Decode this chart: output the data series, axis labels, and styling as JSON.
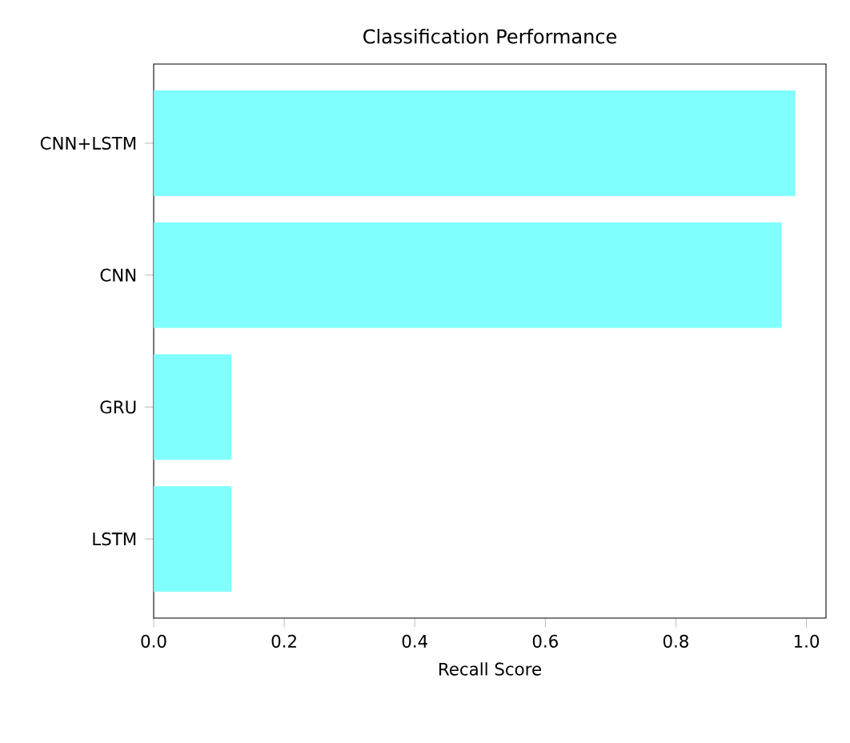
{
  "chart_data": {
    "type": "bar",
    "orientation": "horizontal",
    "title": "Classification Performance",
    "xlabel": "Recall Score",
    "categories": [
      "CNN+LSTM",
      "CNN",
      "GRU",
      "LSTM"
    ],
    "values": [
      0.983,
      0.962,
      0.119,
      0.119
    ],
    "color": "#80ffff",
    "xlim": [
      0,
      1.03
    ],
    "xticks": [
      {
        "value": 0,
        "label": "0.0"
      },
      {
        "value": 0.2,
        "label": "0.2"
      },
      {
        "value": 0.4,
        "label": "0.4"
      },
      {
        "value": 0.6,
        "label": "0.6"
      },
      {
        "value": 0.8,
        "label": "0.8"
      },
      {
        "value": 1,
        "label": "1.0"
      }
    ],
    "grid": false
  }
}
